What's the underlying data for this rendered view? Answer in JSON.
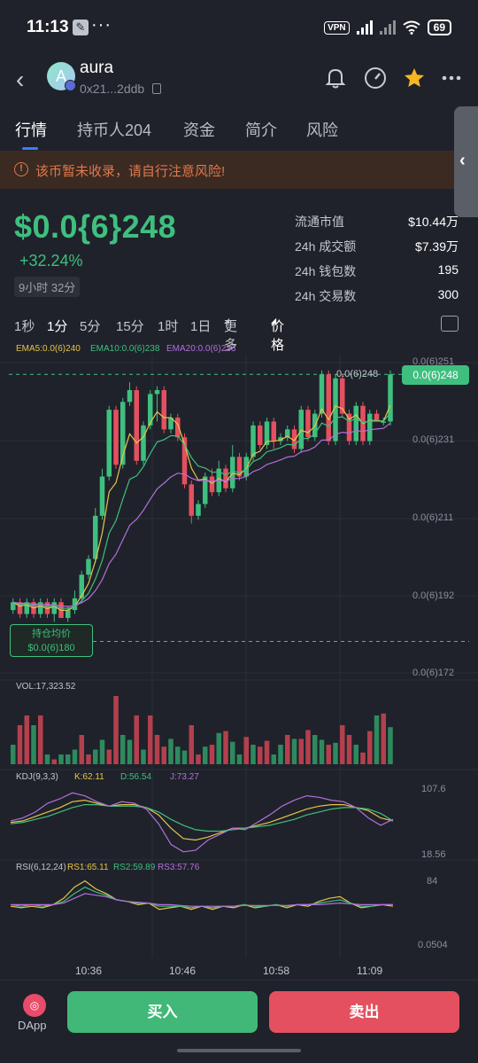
{
  "status_bar": {
    "time": "11:13",
    "vpn": "VPN",
    "battery": "69",
    "more": "···"
  },
  "header": {
    "token_name": "aura",
    "avatar_letter": "A",
    "address": "0x21...2ddb"
  },
  "tabs": [
    {
      "label": "行情",
      "active": true
    },
    {
      "label": "持币人204"
    },
    {
      "label": "资金"
    },
    {
      "label": "简介"
    },
    {
      "label": "风险"
    }
  ],
  "warning": {
    "text": "该币暂未收录，请自行注意风险!"
  },
  "price": {
    "value": "$0.0{6}248",
    "change": "+32.24%",
    "age": "9小时 32分"
  },
  "stats": [
    {
      "label": "流通市值",
      "value": "$10.44万"
    },
    {
      "label": "24h 成交额",
      "value": "$7.39万"
    },
    {
      "label": "24h 钱包数",
      "value": "195"
    },
    {
      "label": "24h 交易数",
      "value": "300"
    }
  ],
  "intervals": [
    "1秒",
    "1分",
    "5分",
    "15分",
    "1时",
    "1日",
    "更多",
    "价格"
  ],
  "active_interval": "1分",
  "ema": {
    "ema5": "EMA5:0.0(6)240",
    "ema10": "EMA10:0.0(6)238",
    "ema20": "EMA20:0.0(6)233"
  },
  "colors": {
    "up": "#3fbf7f",
    "down": "#e4505f",
    "ema5": "#e6c44a",
    "ema10": "#3fbf7f",
    "ema20": "#b46fdc",
    "bg": "#1f222a",
    "accent": "#3d7bfd",
    "warn": "#e0784a"
  },
  "chart_data": [
    {
      "type": "candlestick",
      "title": "",
      "y_axis_labels": [
        "0.0(6)251",
        "0.0(6)231",
        "0.0(6)211",
        "0.0(6)192",
        "0.0(6)172"
      ],
      "ylim": [
        172,
        251
      ],
      "x_axis_labels": [
        "10:36",
        "10:46",
        "10:58",
        "11:09"
      ],
      "last_price_label": "0.0(6)248",
      "high_marker_label": "0.0(6)248",
      "hold_avg_label": "持仓均价",
      "hold_avg_value": "$0.0(6)180",
      "hold_avg_price": 180,
      "candles": [
        [
          188,
          190,
          191,
          187
        ],
        [
          190,
          187,
          191,
          186
        ],
        [
          187,
          190,
          191,
          186
        ],
        [
          190,
          187,
          191,
          186
        ],
        [
          187,
          190,
          191,
          186
        ],
        [
          190,
          187,
          191,
          186
        ],
        [
          187,
          190,
          191,
          185
        ],
        [
          190,
          186,
          191,
          186
        ],
        [
          186,
          188,
          189,
          185
        ],
        [
          188,
          191,
          193,
          187
        ],
        [
          191,
          197,
          198,
          190
        ],
        [
          197,
          201,
          202,
          196
        ],
        [
          201,
          212,
          214,
          200
        ],
        [
          212,
          222,
          224,
          211
        ],
        [
          222,
          239,
          240,
          221
        ],
        [
          239,
          225,
          240,
          224
        ],
        [
          225,
          241,
          242,
          224
        ],
        [
          241,
          244,
          246,
          240
        ],
        [
          244,
          226,
          245,
          225
        ],
        [
          226,
          235,
          236,
          225
        ],
        [
          235,
          243,
          244,
          234
        ],
        [
          243,
          244,
          245,
          236
        ],
        [
          244,
          234,
          245,
          233
        ],
        [
          234,
          237,
          238,
          233
        ],
        [
          237,
          232,
          238,
          231
        ],
        [
          232,
          220,
          233,
          219
        ],
        [
          220,
          212,
          221,
          210
        ],
        [
          212,
          215,
          216,
          211
        ],
        [
          215,
          222,
          223,
          214
        ],
        [
          222,
          218,
          224,
          217
        ],
        [
          218,
          224,
          226,
          217
        ],
        [
          224,
          219,
          225,
          218
        ],
        [
          219,
          227,
          230,
          218
        ],
        [
          227,
          222,
          228,
          221
        ],
        [
          222,
          227,
          228,
          221
        ],
        [
          227,
          235,
          236,
          226
        ],
        [
          235,
          230,
          236,
          229
        ],
        [
          230,
          236,
          237,
          229
        ],
        [
          236,
          231,
          237,
          229
        ],
        [
          231,
          232,
          233,
          230
        ],
        [
          232,
          234,
          235,
          231
        ],
        [
          234,
          229,
          235,
          228
        ],
        [
          229,
          239,
          240,
          228
        ],
        [
          239,
          232,
          240,
          231
        ],
        [
          232,
          238,
          239,
          231
        ],
        [
          238,
          248,
          249,
          237
        ],
        [
          248,
          231,
          249,
          230
        ],
        [
          231,
          247,
          248,
          230
        ],
        [
          247,
          238,
          248,
          237
        ],
        [
          238,
          231,
          239,
          230
        ],
        [
          231,
          240,
          241,
          230
        ],
        [
          240,
          231,
          241,
          230
        ],
        [
          231,
          238,
          239,
          230
        ],
        [
          238,
          236,
          239,
          236
        ],
        [
          236,
          236,
          237,
          235
        ],
        [
          236,
          248,
          249,
          235
        ]
      ]
    },
    {
      "type": "bar",
      "title": "VOL:17,323.52",
      "values": [
        2,
        4,
        5,
        4,
        5,
        1,
        0.5,
        1,
        1,
        1.5,
        3,
        1,
        1.5,
        2.5,
        1.5,
        7,
        3,
        2.5,
        5,
        1.5,
        5,
        3,
        1.8,
        2.6,
        1.8,
        1.4,
        4,
        1,
        1.8,
        2,
        3.2,
        3.4,
        2.3,
        1,
        2.8,
        2,
        1.8,
        2.4,
        1,
        2,
        3,
        2.6,
        2.6,
        3.5,
        3,
        2.5,
        2,
        2.2,
        4,
        3,
        2,
        1.2,
        3.4,
        5,
        5.2,
        3.8
      ],
      "directions": [
        "up",
        "down",
        "down",
        "up",
        "down",
        "up",
        "down",
        "up",
        "up",
        "up",
        "down",
        "down",
        "up",
        "up",
        "down",
        "down",
        "up",
        "up",
        "down",
        "up",
        "down",
        "down",
        "down",
        "up",
        "up",
        "up",
        "down",
        "down",
        "up",
        "down",
        "up",
        "down",
        "up",
        "up",
        "down",
        "up",
        "down",
        "down",
        "up",
        "up",
        "down",
        "up",
        "down",
        "down",
        "up",
        "up",
        "down",
        "up",
        "down",
        "down",
        "up",
        "down",
        "down",
        "up",
        "down",
        "up"
      ]
    },
    {
      "type": "line",
      "title": "KDJ(9,3,3)",
      "legend": [
        "K:62.11",
        "D:56.54",
        "J:73.27"
      ],
      "y_axis_labels": [
        "107.6",
        "18.56"
      ],
      "ylim": [
        18.56,
        107.6
      ],
      "series": [
        {
          "name": "K",
          "values": [
            60,
            62,
            68,
            74,
            80,
            88,
            90,
            86,
            82,
            84,
            84,
            80,
            70,
            52,
            38,
            36,
            40,
            46,
            52,
            52,
            56,
            60,
            66,
            72,
            78,
            82,
            84,
            84,
            80,
            76,
            66,
            62
          ]
        },
        {
          "name": "D",
          "values": [
            58,
            60,
            64,
            68,
            74,
            80,
            84,
            84,
            82,
            82,
            82,
            80,
            74,
            64,
            56,
            50,
            48,
            48,
            50,
            52,
            54,
            56,
            60,
            64,
            70,
            74,
            78,
            80,
            80,
            78,
            72,
            62
          ]
        },
        {
          "name": "J",
          "values": [
            62,
            66,
            74,
            86,
            92,
            100,
            96,
            88,
            82,
            88,
            86,
            78,
            58,
            30,
            20,
            22,
            36,
            44,
            52,
            50,
            60,
            70,
            82,
            90,
            96,
            94,
            90,
            88,
            80,
            66,
            56,
            64
          ]
        }
      ]
    },
    {
      "type": "line",
      "title": "RSI(6,12,24)",
      "legend": [
        "RS1:65.11",
        "RS2:59.89",
        "RS3:57.76"
      ],
      "y_axis_labels": [
        "84",
        "0.0504"
      ],
      "ylim": [
        0.0504,
        84
      ],
      "series": [
        {
          "name": "RS1",
          "values": [
            48,
            46,
            48,
            46,
            50,
            58,
            72,
            80,
            70,
            64,
            56,
            54,
            50,
            52,
            44,
            46,
            48,
            44,
            48,
            44,
            48,
            46,
            50,
            46,
            48,
            50,
            46,
            50,
            48,
            54,
            58,
            60,
            52,
            46,
            48,
            50,
            48
          ]
        },
        {
          "name": "RS2",
          "values": [
            50,
            48,
            50,
            48,
            50,
            54,
            64,
            72,
            66,
            62,
            56,
            54,
            52,
            52,
            48,
            48,
            48,
            46,
            48,
            46,
            48,
            48,
            50,
            48,
            48,
            50,
            48,
            50,
            50,
            52,
            54,
            56,
            52,
            48,
            48,
            50,
            50
          ]
        },
        {
          "name": "RS3",
          "values": [
            50,
            50,
            50,
            50,
            50,
            52,
            58,
            64,
            62,
            60,
            56,
            54,
            53,
            52,
            50,
            50,
            49,
            48,
            48,
            48,
            48,
            48,
            49,
            49,
            49,
            49,
            49,
            50,
            50,
            50,
            51,
            52,
            51,
            50,
            50,
            50,
            50
          ]
        }
      ]
    }
  ],
  "actions": {
    "buy": "买入",
    "sell": "卖出",
    "dapp": "DApp"
  }
}
